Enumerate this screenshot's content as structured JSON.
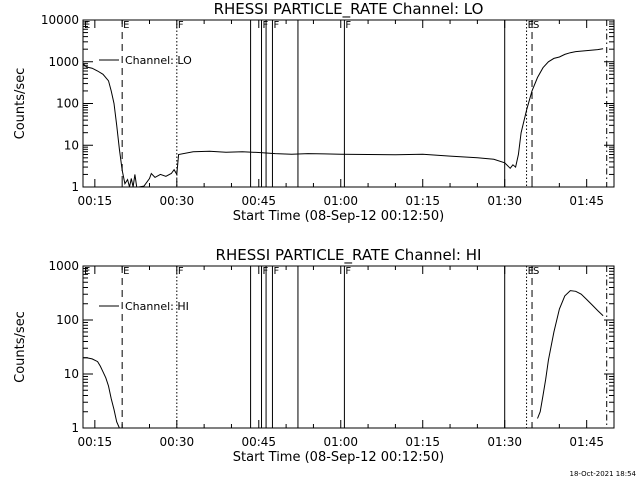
{
  "footer": {
    "timestamp": "18-Oct-2021 18:54"
  },
  "chart_data": [
    {
      "type": "line",
      "title": "RHESSI PARTICLE_RATE Channel: LO",
      "xlabel": "Start Time (08-Sep-12 00:12:50)",
      "ylabel": "Counts/sec",
      "yscale": "log",
      "ylim": [
        1,
        10000
      ],
      "xlim": [
        "00:12:50",
        "01:50:00"
      ],
      "grid": false,
      "legend_position": "upper-left",
      "x_ticks": [
        "00:15",
        "00:30",
        "00:45",
        "01:00",
        "01:15",
        "01:30",
        "01:45"
      ],
      "y_ticks": [
        "1",
        "10",
        "100",
        "1000",
        "10000"
      ],
      "series": [
        {
          "name": "Channel: LO",
          "x": [
            "00:12:50",
            "00:13:30",
            "00:14:30",
            "00:15:30",
            "00:16:30",
            "00:17:30",
            "00:18:00",
            "00:18:30",
            "00:19:00",
            "00:19:30",
            "00:20:00",
            "00:20:30",
            "00:21:00",
            "00:21:20",
            "00:21:40",
            "00:22:00",
            "00:22:20",
            "00:22:40",
            "00:23:00",
            "00:24:00",
            "00:25:00",
            "00:25:20",
            "00:26:00",
            "00:27:00",
            "00:28:00",
            "00:29:00",
            "00:29:30",
            "00:30:00",
            "00:30:20",
            "00:33:00",
            "00:36:00",
            "00:39:00",
            "00:42:00",
            "00:45:00",
            "00:48:00",
            "00:51:00",
            "00:54:00",
            "00:57:00",
            "01:00:00",
            "01:05:00",
            "01:10:00",
            "01:15:00",
            "01:20:00",
            "01:25:00",
            "01:28:00",
            "01:30:00",
            "01:31:00",
            "01:31:30",
            "01:32:00",
            "01:32:30",
            "01:33:00",
            "01:34:00",
            "01:35:00",
            "01:36:00",
            "01:37:00",
            "01:38:00",
            "01:39:00",
            "01:40:00",
            "01:41:00",
            "01:42:00",
            "01:43:00",
            "01:45:00",
            "01:47:00",
            "01:48:00"
          ],
          "y": [
            900,
            750,
            700,
            600,
            500,
            350,
            200,
            100,
            30,
            8,
            2.5,
            1.2,
            1.5,
            1,
            1.6,
            1,
            2,
            1,
            1,
            1.05,
            1.6,
            2.1,
            1.7,
            2.0,
            1.8,
            2.1,
            2.6,
            2.0,
            6,
            7,
            7.2,
            6.8,
            7,
            6.7,
            6.3,
            6.1,
            6.3,
            6.2,
            6.1,
            6.0,
            5.9,
            6.1,
            5.5,
            5.0,
            4.6,
            3.8,
            2.8,
            3.4,
            3.0,
            6,
            20,
            70,
            200,
            420,
            720,
            1000,
            1200,
            1300,
            1500,
            1650,
            1750,
            1850,
            1950,
            2050
          ]
        }
      ],
      "markers": [
        {
          "time": "00:20:00",
          "style": "dashed",
          "label": "E"
        },
        {
          "time": "00:30:00",
          "style": "dotted",
          "label": "F"
        },
        {
          "time": "00:43:30",
          "style": "solid",
          "label": ""
        },
        {
          "time": "00:45:30",
          "style": "solid",
          "label": "F"
        },
        {
          "time": "00:46:20",
          "style": "solid",
          "label": ""
        },
        {
          "time": "00:47:30",
          "style": "solid",
          "label": "F"
        },
        {
          "time": "00:52:10",
          "style": "solid",
          "label": ""
        },
        {
          "time": "01:00:40",
          "style": "solid",
          "label": "F"
        },
        {
          "time": "01:30:00",
          "style": "solid",
          "label": ""
        },
        {
          "time": "01:34:00",
          "style": "dotted",
          "label": "E"
        },
        {
          "time": "01:35:00",
          "style": "dashed",
          "label": "S"
        },
        {
          "time": "01:48:40",
          "style": "dashdot",
          "label": ""
        }
      ]
    },
    {
      "type": "line",
      "title": "RHESSI PARTICLE_RATE Channel: HI",
      "xlabel": "Start Time (08-Sep-12 00:12:50)",
      "ylabel": "Counts/sec",
      "yscale": "log",
      "ylim": [
        1,
        1000
      ],
      "xlim": [
        "00:12:50",
        "01:50:00"
      ],
      "grid": false,
      "legend_position": "upper-left",
      "x_ticks": [
        "00:15",
        "00:30",
        "00:45",
        "01:00",
        "01:15",
        "01:30",
        "01:45"
      ],
      "y_ticks": [
        "1",
        "10",
        "100",
        "1000"
      ],
      "series": [
        {
          "name": "Channel: HI",
          "x": [
            "00:12:50",
            "00:13:30",
            "00:14:30",
            "00:15:30",
            "00:16:00",
            "00:16:30",
            "00:17:00",
            "00:17:30",
            "00:18:00",
            "00:18:30",
            "00:19:00",
            "00:19:30",
            "00:20:00",
            "00:20:30"
          ],
          "y": [
            20,
            20,
            19,
            17,
            14,
            11,
            8.5,
            6,
            3.5,
            2.2,
            1.3,
            1,
            1,
            1
          ]
        },
        {
          "name": "",
          "x": [
            "01:36:00",
            "01:36:30",
            "01:37:00",
            "01:37:30",
            "01:38:00",
            "01:39:00",
            "01:40:00",
            "01:41:00",
            "01:42:00",
            "01:43:00",
            "01:44:00",
            "01:45:00",
            "01:46:00",
            "01:47:00",
            "01:48:00"
          ],
          "y": [
            1.5,
            2,
            4,
            8,
            18,
            60,
            160,
            280,
            350,
            340,
            300,
            240,
            190,
            150,
            120
          ]
        }
      ],
      "markers": [
        {
          "time": "00:20:00",
          "style": "dashed",
          "label": "E"
        },
        {
          "time": "00:30:00",
          "style": "dotted",
          "label": "F"
        },
        {
          "time": "00:43:30",
          "style": "solid",
          "label": ""
        },
        {
          "time": "00:45:30",
          "style": "solid",
          "label": "F"
        },
        {
          "time": "00:46:20",
          "style": "solid",
          "label": ""
        },
        {
          "time": "00:47:30",
          "style": "solid",
          "label": "F"
        },
        {
          "time": "00:52:10",
          "style": "solid",
          "label": ""
        },
        {
          "time": "01:00:40",
          "style": "solid",
          "label": "F"
        },
        {
          "time": "01:30:00",
          "style": "solid",
          "label": ""
        },
        {
          "time": "01:34:00",
          "style": "dotted",
          "label": "E"
        },
        {
          "time": "01:35:00",
          "style": "dashed",
          "label": "S"
        },
        {
          "time": "01:48:40",
          "style": "dashdot",
          "label": ""
        }
      ]
    }
  ]
}
